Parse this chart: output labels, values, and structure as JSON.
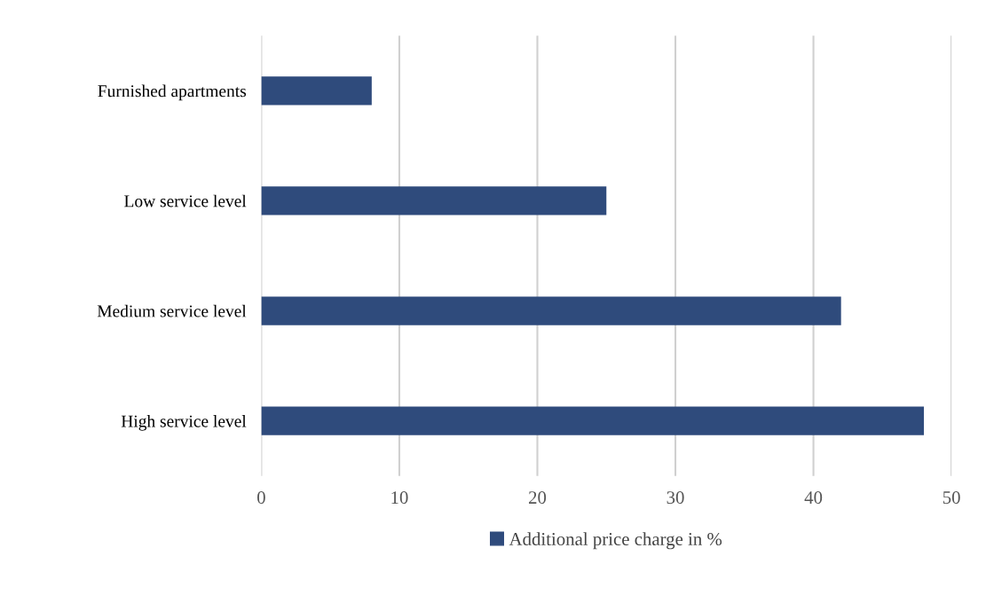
{
  "chart_data": {
    "type": "bar",
    "orientation": "horizontal",
    "categories": [
      "Furnished apartments",
      "Low service level",
      "Medium service level",
      "High service level"
    ],
    "series": [
      {
        "name": "Additional price charge in %",
        "color": "#2f4b7c",
        "values": [
          8,
          25,
          42,
          48
        ]
      }
    ],
    "xlim": [
      0,
      50
    ],
    "xticks": [
      0,
      10,
      20,
      30,
      40,
      50
    ],
    "grid": "x",
    "legend": "bottom"
  }
}
